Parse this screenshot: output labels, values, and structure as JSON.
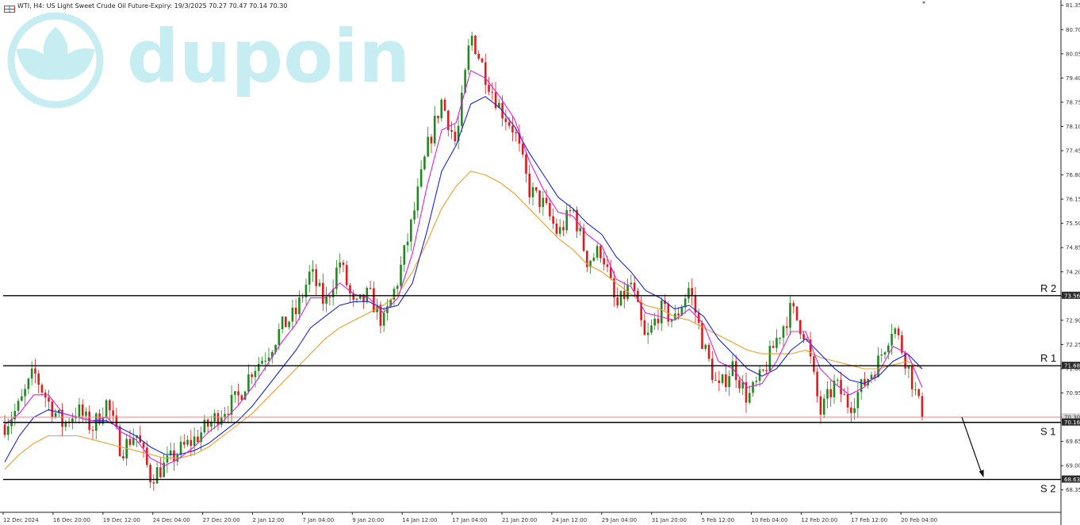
{
  "header": {
    "symbol": "WTI, H4:",
    "description": "US Light Sweet Crude Oil Future-Expiry: 19/3/2025",
    "ohlc": "70.27 70.47 70.14 70.30"
  },
  "watermark": {
    "text": "dupoin",
    "icon": "lotus-logo-icon",
    "color": "#c6eef2"
  },
  "colors": {
    "bull": "#1e8a1e",
    "bear": "#e01b1b",
    "ma_fast": "#e21ee2",
    "ma_mid": "#1a24d6",
    "ma_slow": "#f39c26",
    "levels": "#000000",
    "bid": "#e88080"
  },
  "chart_data": {
    "type": "candlestick",
    "y_ticks": [
      "81.35",
      "80.70",
      "80.05",
      "79.40",
      "78.75",
      "78.10",
      "77.45",
      "76.80",
      "76.15",
      "75.50",
      "74.85",
      "74.20",
      "73.55",
      "72.90",
      "72.25",
      "71.60",
      "70.95",
      "70.30",
      "69.65",
      "69.00",
      "68.35"
    ],
    "x_ticks": [
      "12 Dec 2024",
      "16 Dec 20:00",
      "19 Dec 12:00",
      "24 Dec 04:00",
      "27 Dec 20:00",
      "2 Jan 12:00",
      "7 Jan 04:00",
      "9 Jan 20:00",
      "14 Jan 12:00",
      "17 Jan 04:00",
      "21 Jan 20:00",
      "24 Jan 12:00",
      "29 Jan 04:00",
      "31 Jan 20:00",
      "5 Feb 12:00",
      "10 Feb 04:00",
      "12 Feb 20:00",
      "17 Feb 12:00",
      "20 Feb 04:00"
    ],
    "levels": [
      {
        "label": "R 2",
        "price": 73.56,
        "tag": "73.56"
      },
      {
        "label": "R 1",
        "price": 71.68,
        "tag": "71.68"
      },
      {
        "label": "S 1",
        "price": 70.16,
        "tag": "70.16"
      },
      {
        "label": "S 2",
        "price": 68.63,
        "tag": "68.63"
      }
    ],
    "bid": {
      "price": 70.3,
      "tag": "70.30"
    },
    "close_path": [
      70.1,
      70.6,
      71.5,
      70.7,
      70.1,
      70.5,
      70.0,
      70.7,
      69.4,
      69.9,
      68.7,
      69.0,
      69.4,
      69.7,
      70.1,
      70.5,
      70.8,
      71.6,
      72.0,
      72.7,
      73.1,
      74.2,
      73.3,
      74.5,
      73.2,
      73.6,
      72.8,
      74.0,
      75.6,
      77.5,
      78.8,
      77.6,
      80.6,
      79.5,
      78.6,
      78.0,
      76.4,
      76.0,
      75.2,
      75.9,
      74.5,
      74.8,
      73.2,
      73.9,
      72.3,
      73.2,
      72.9,
      73.8,
      72.2,
      71.0,
      71.7,
      70.8,
      71.4,
      72.4,
      73.2,
      72.5,
      70.4,
      71.2,
      70.6,
      71.2,
      71.8,
      72.8,
      71.7,
      70.3
    ],
    "ma_fast": [
      70.1,
      70.4,
      70.9,
      70.9,
      70.4,
      70.3,
      70.2,
      70.3,
      69.9,
      69.7,
      69.2,
      69.0,
      69.2,
      69.5,
      69.9,
      70.2,
      70.6,
      71.1,
      71.7,
      72.3,
      72.8,
      73.5,
      73.5,
      73.9,
      73.6,
      73.5,
      73.1,
      73.5,
      74.7,
      76.5,
      78.0,
      78.2,
      79.6,
      79.4,
      78.9,
      78.3,
      77.2,
      76.4,
      75.8,
      75.7,
      75.2,
      74.9,
      74.0,
      73.8,
      73.1,
      73.0,
      72.9,
      73.2,
      72.8,
      71.8,
      71.6,
      71.1,
      71.2,
      71.8,
      72.6,
      72.6,
      71.6,
      71.2,
      70.9,
      71.1,
      71.5,
      72.2,
      72.0,
      71.1
    ],
    "ma_mid": [
      69.1,
      69.8,
      70.3,
      70.5,
      70.4,
      70.3,
      70.2,
      70.2,
      70.0,
      69.8,
      69.5,
      69.3,
      69.3,
      69.4,
      69.6,
      69.9,
      70.2,
      70.6,
      71.1,
      71.6,
      72.1,
      72.7,
      73.0,
      73.3,
      73.4,
      73.4,
      73.2,
      73.3,
      73.9,
      75.3,
      76.9,
      77.6,
      78.7,
      78.9,
      78.6,
      78.1,
      77.4,
      76.8,
      76.2,
      75.9,
      75.5,
      75.2,
      74.6,
      74.2,
      73.7,
      73.5,
      73.2,
      73.3,
      73.0,
      72.4,
      72.0,
      71.6,
      71.4,
      71.6,
      72.1,
      72.4,
      72.0,
      71.6,
      71.3,
      71.2,
      71.4,
      71.8,
      72.0,
      71.6
    ],
    "ma_slow": [
      68.9,
      69.3,
      69.6,
      69.8,
      69.8,
      69.8,
      69.7,
      69.6,
      69.5,
      69.4,
      69.3,
      69.2,
      69.2,
      69.3,
      69.5,
      69.8,
      70.1,
      70.4,
      70.8,
      71.2,
      71.6,
      72.0,
      72.4,
      72.7,
      72.9,
      73.1,
      73.3,
      73.6,
      74.2,
      75.0,
      75.9,
      76.5,
      76.9,
      76.8,
      76.6,
      76.3,
      75.9,
      75.5,
      75.1,
      74.8,
      74.4,
      74.2,
      73.9,
      73.6,
      73.3,
      73.2,
      73.0,
      72.9,
      72.7,
      72.5,
      72.3,
      72.1,
      72.0,
      72.0,
      72.0,
      72.1,
      71.9,
      71.8,
      71.7,
      71.6,
      71.6,
      71.7,
      71.8,
      71.6
    ]
  }
}
